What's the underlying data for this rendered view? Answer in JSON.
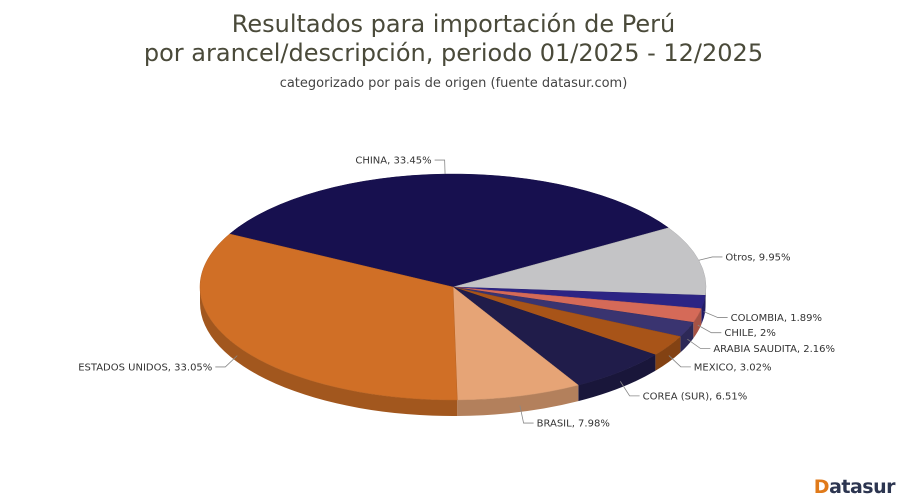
{
  "chart_data": {
    "type": "pie",
    "title_lines": [
      "Resultados para importación de Perú",
      "por arancel/descripción, periodo 01/2025 - 12/2025"
    ],
    "subtitle": "categorizado por pais de origen (fuente datasur.com)",
    "slices": [
      {
        "name": "CHINA",
        "value": 33.45,
        "label": "CHINA, 33.45%",
        "color": "#17104f"
      },
      {
        "name": "Otros",
        "value": 9.95,
        "label": "Otros, 9.95%",
        "color": "#c4c4c6"
      },
      {
        "name": "COLOMBIA",
        "value": 1.89,
        "label": "COLOMBIA, 1.89%",
        "color": "#2c2484"
      },
      {
        "name": "CHILE",
        "value": 2,
        "label": "CHILE, 2%",
        "color": "#d56a58"
      },
      {
        "name": "ARABIA SAUDITA",
        "value": 2.16,
        "label": "ARABIA SAUDITA, 2.16%",
        "color": "#3a3470"
      },
      {
        "name": "MEXICO",
        "value": 3.02,
        "label": "MEXICO, 3.02%",
        "color": "#a85418"
      },
      {
        "name": "COREA (SUR)",
        "value": 6.51,
        "label": "COREA (SUR), 6.51%",
        "color": "#201c4a"
      },
      {
        "name": "BRASIL",
        "value": 7.98,
        "label": "BRASIL, 7.98%",
        "color": "#e6a476"
      },
      {
        "name": "ESTADOS UNIDOS",
        "value": 33.05,
        "label": "ESTADOS UNIDOS, 33.05%",
        "color": "#d06f26"
      }
    ]
  },
  "logo": {
    "mark": "D",
    "rest": "atasur"
  }
}
